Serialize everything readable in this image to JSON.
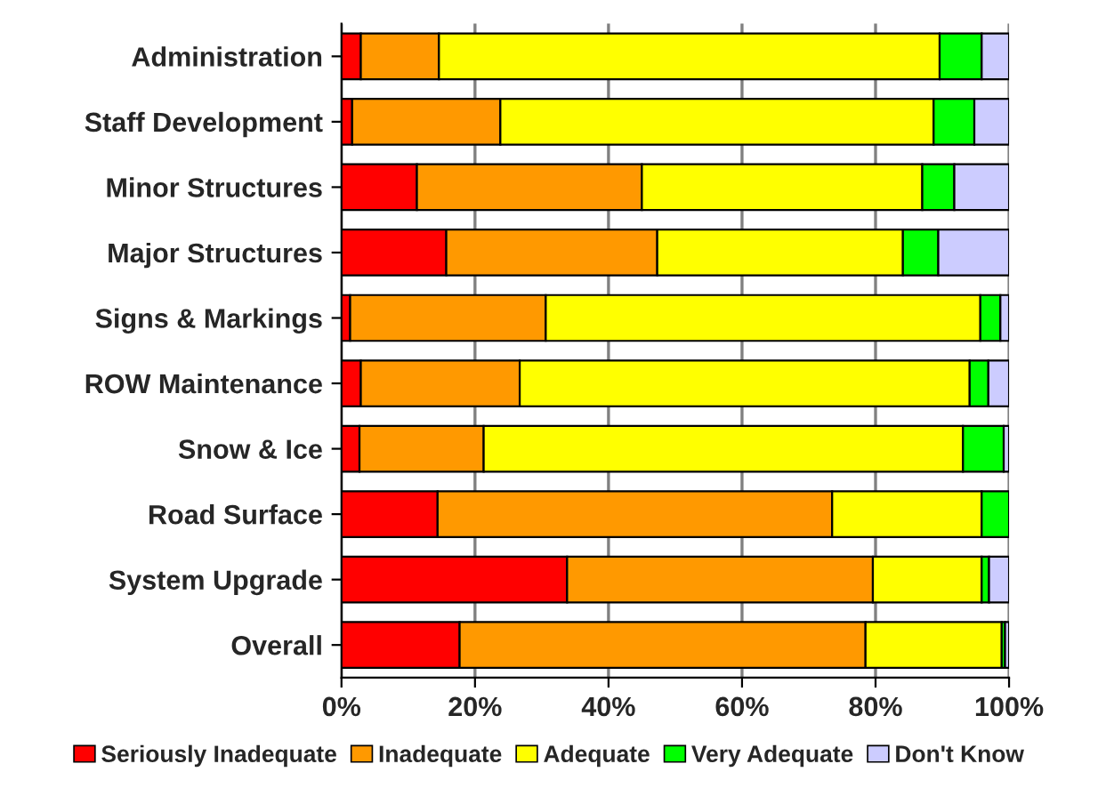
{
  "chart_data": {
    "type": "bar",
    "orientation": "horizontal",
    "stacked": true,
    "categories": [
      "Administration",
      "Staff Development",
      "Minor Structures",
      "Major Structures",
      "Signs & Markings",
      "ROW Maintenance",
      "Snow & Ice",
      "Road Surface",
      "System Upgrade",
      "Overall"
    ],
    "series": [
      {
        "name": "Seriously Inadequate",
        "color": "#ff0000",
        "values": [
          2.9,
          1.6,
          11.3,
          15.7,
          1.3,
          2.9,
          2.7,
          14.4,
          33.8,
          17.7
        ]
      },
      {
        "name": "Inadequate",
        "color": "#ff9900",
        "values": [
          11.7,
          22.2,
          33.7,
          31.6,
          29.3,
          23.8,
          18.6,
          59.1,
          45.8,
          60.8
        ]
      },
      {
        "name": "Adequate",
        "color": "#ffff00",
        "values": [
          75.0,
          64.9,
          42.0,
          36.8,
          65.1,
          67.4,
          71.8,
          22.4,
          16.3,
          20.4
        ]
      },
      {
        "name": "Very Adequate",
        "color": "#00ff00",
        "values": [
          6.3,
          6.1,
          4.8,
          5.3,
          3.0,
          2.8,
          6.1,
          4.1,
          1.1,
          0.5
        ]
      },
      {
        "name": "Don't Know",
        "color": "#ccccff",
        "values": [
          4.1,
          5.2,
          8.2,
          10.6,
          1.3,
          3.1,
          0.8,
          null,
          3.0,
          0.6
        ]
      }
    ],
    "xlim": [
      0,
      100
    ],
    "xticks": [
      {
        "value": 0,
        "label": "0%"
      },
      {
        "value": 20,
        "label": "20%"
      },
      {
        "value": 40,
        "label": "40%"
      },
      {
        "value": 60,
        "label": "60%"
      },
      {
        "value": 80,
        "label": "80%"
      },
      {
        "value": 100,
        "label": "100%"
      }
    ],
    "grid": "x",
    "legend": "bottom"
  }
}
